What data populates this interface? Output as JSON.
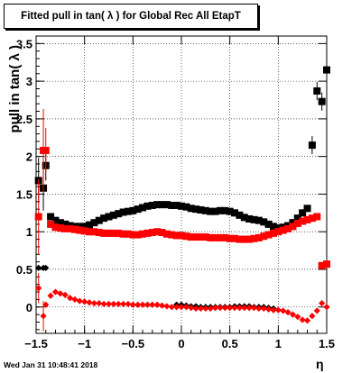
{
  "chart_data": {
    "type": "scatter",
    "title": "Fitted pull in tan( λ ) for Global Rec All EtapT",
    "xlabel": "η",
    "ylabel": "pull in tan( λ )",
    "xlim": [
      -1.5,
      1.5
    ],
    "ylim": [
      -0.35,
      3.6
    ],
    "grid": true,
    "x_ticks": [
      "−1.5",
      "−1",
      "−0.5",
      "0",
      "0.5",
      "1",
      "1.5"
    ],
    "x_tick_values": [
      -1.5,
      -1,
      -0.5,
      0,
      0.5,
      1,
      1.5
    ],
    "y_ticks": [
      "0",
      "0.5",
      "1",
      "1.5",
      "2",
      "2.5",
      "3",
      "3.5"
    ],
    "y_tick_values": [
      0,
      0.5,
      1,
      1.5,
      2,
      2.5,
      3,
      3.5
    ],
    "series": [
      {
        "marker": "square",
        "color": "#000000",
        "points": [
          [
            -1.475,
            1.68
          ],
          [
            -1.425,
            1.58
          ],
          [
            -1.4,
            1.88
          ],
          [
            -1.35,
            1.2
          ],
          [
            -1.3,
            1.15
          ],
          [
            -1.25,
            1.12
          ],
          [
            -1.2,
            1.1
          ],
          [
            -1.15,
            1.08
          ],
          [
            -1.1,
            1.07
          ],
          [
            -1.05,
            1.07
          ],
          [
            -1.0,
            1.07
          ],
          [
            -0.95,
            1.09
          ],
          [
            -0.9,
            1.12
          ],
          [
            -0.85,
            1.15
          ],
          [
            -0.8,
            1.18
          ],
          [
            -0.75,
            1.2
          ],
          [
            -0.7,
            1.22
          ],
          [
            -0.65,
            1.24
          ],
          [
            -0.6,
            1.26
          ],
          [
            -0.55,
            1.27
          ],
          [
            -0.5,
            1.28
          ],
          [
            -0.45,
            1.3
          ],
          [
            -0.4,
            1.32
          ],
          [
            -0.35,
            1.34
          ],
          [
            -0.3,
            1.35
          ],
          [
            -0.25,
            1.36
          ],
          [
            -0.2,
            1.36
          ],
          [
            -0.15,
            1.36
          ],
          [
            -0.1,
            1.35
          ],
          [
            -0.05,
            1.35
          ],
          [
            0.0,
            1.34
          ],
          [
            0.05,
            1.33
          ],
          [
            0.1,
            1.31
          ],
          [
            0.15,
            1.3
          ],
          [
            0.2,
            1.29
          ],
          [
            0.25,
            1.28
          ],
          [
            0.3,
            1.27
          ],
          [
            0.35,
            1.27
          ],
          [
            0.4,
            1.28
          ],
          [
            0.45,
            1.28
          ],
          [
            0.5,
            1.27
          ],
          [
            0.55,
            1.25
          ],
          [
            0.6,
            1.22
          ],
          [
            0.65,
            1.19
          ],
          [
            0.7,
            1.17
          ],
          [
            0.75,
            1.16
          ],
          [
            0.8,
            1.15
          ],
          [
            0.85,
            1.13
          ],
          [
            0.9,
            1.1
          ],
          [
            0.95,
            1.07
          ],
          [
            1.0,
            1.05
          ],
          [
            1.05,
            1.06
          ],
          [
            1.1,
            1.08
          ],
          [
            1.15,
            1.12
          ],
          [
            1.2,
            1.18
          ],
          [
            1.25,
            1.25
          ],
          [
            1.3,
            1.31
          ],
          [
            1.35,
            2.15
          ],
          [
            1.4,
            2.87
          ],
          [
            1.45,
            2.73
          ],
          [
            1.5,
            3.15
          ]
        ],
        "errors": [
          [
            -1.475,
            0.3
          ],
          [
            -1.425,
            0.3
          ],
          [
            -1.4,
            0.2
          ],
          [
            1.35,
            0.12
          ],
          [
            1.4,
            0.12
          ],
          [
            1.45,
            0.12
          ],
          [
            1.5,
            0.15
          ]
        ]
      },
      {
        "marker": "square",
        "color": "#ff0000",
        "points": [
          [
            -1.475,
            1.2
          ],
          [
            -1.425,
            2.08
          ],
          [
            -1.4,
            2.08
          ],
          [
            -1.35,
            1.1
          ],
          [
            -1.3,
            1.06
          ],
          [
            -1.25,
            1.05
          ],
          [
            -1.2,
            1.04
          ],
          [
            -1.15,
            1.04
          ],
          [
            -1.1,
            1.03
          ],
          [
            -1.05,
            1.02
          ],
          [
            -1.0,
            1.01
          ],
          [
            -0.95,
            1.0
          ],
          [
            -0.9,
            1.0
          ],
          [
            -0.85,
            0.99
          ],
          [
            -0.8,
            0.98
          ],
          [
            -0.75,
            0.98
          ],
          [
            -0.7,
            0.98
          ],
          [
            -0.65,
            0.98
          ],
          [
            -0.6,
            0.97
          ],
          [
            -0.55,
            0.97
          ],
          [
            -0.5,
            0.96
          ],
          [
            -0.45,
            0.96
          ],
          [
            -0.4,
            0.97
          ],
          [
            -0.35,
            0.98
          ],
          [
            -0.3,
            0.99
          ],
          [
            -0.25,
            1.0
          ],
          [
            -0.2,
            0.99
          ],
          [
            -0.15,
            0.97
          ],
          [
            -0.1,
            0.96
          ],
          [
            -0.05,
            0.95
          ],
          [
            0.0,
            0.95
          ],
          [
            0.05,
            0.94
          ],
          [
            0.1,
            0.93
          ],
          [
            0.15,
            0.93
          ],
          [
            0.2,
            0.93
          ],
          [
            0.25,
            0.93
          ],
          [
            0.3,
            0.92
          ],
          [
            0.35,
            0.92
          ],
          [
            0.4,
            0.92
          ],
          [
            0.45,
            0.92
          ],
          [
            0.5,
            0.91
          ],
          [
            0.55,
            0.91
          ],
          [
            0.6,
            0.9
          ],
          [
            0.65,
            0.9
          ],
          [
            0.7,
            0.9
          ],
          [
            0.75,
            0.91
          ],
          [
            0.8,
            0.92
          ],
          [
            0.85,
            0.94
          ],
          [
            0.9,
            0.96
          ],
          [
            0.95,
            0.98
          ],
          [
            1.0,
            1.0
          ],
          [
            1.05,
            1.02
          ],
          [
            1.1,
            1.04
          ],
          [
            1.15,
            1.07
          ],
          [
            1.2,
            1.11
          ],
          [
            1.25,
            1.14
          ],
          [
            1.3,
            1.16
          ],
          [
            1.35,
            1.18
          ],
          [
            1.4,
            1.2
          ],
          [
            1.45,
            0.55
          ],
          [
            1.5,
            0.57
          ]
        ],
        "errors": [
          [
            -1.475,
            0.5
          ],
          [
            -1.425,
            0.55
          ],
          [
            -1.4,
            0.3
          ]
        ]
      },
      {
        "marker": "diamond",
        "color": "#000000",
        "points": [
          [
            -1.475,
            0.52
          ],
          [
            -1.425,
            0.52
          ],
          [
            -1.4,
            0.52
          ],
          [
            -0.05,
            0.03
          ],
          [
            0.0,
            0.03
          ],
          [
            0.05,
            0.02
          ],
          [
            0.1,
            0.01
          ],
          [
            0.15,
            0.01
          ],
          [
            0.2,
            0.0
          ],
          [
            0.25,
            0.0
          ],
          [
            0.3,
            0.0
          ],
          [
            0.35,
            0.0
          ],
          [
            0.4,
            0.0
          ],
          [
            0.45,
            0.0
          ],
          [
            0.5,
            0.0
          ],
          [
            0.55,
            0.01
          ],
          [
            0.6,
            0.01
          ],
          [
            0.65,
            0.01
          ],
          [
            0.7,
            0.01
          ],
          [
            0.75,
            0.0
          ],
          [
            0.8,
            0.0
          ],
          [
            0.85,
            0.0
          ],
          [
            0.9,
            -0.01
          ],
          [
            0.95,
            -0.02
          ]
        ],
        "errors": []
      },
      {
        "marker": "diamond",
        "color": "#ff0000",
        "points": [
          [
            -1.475,
            0.25
          ],
          [
            -1.425,
            -0.12
          ],
          [
            -1.4,
            0.03
          ],
          [
            -1.35,
            0.15
          ],
          [
            -1.3,
            0.2
          ],
          [
            -1.25,
            0.18
          ],
          [
            -1.2,
            0.16
          ],
          [
            -1.15,
            0.12
          ],
          [
            -1.1,
            0.1
          ],
          [
            -1.05,
            0.08
          ],
          [
            -1.0,
            0.07
          ],
          [
            -0.95,
            0.06
          ],
          [
            -0.9,
            0.05
          ],
          [
            -0.85,
            0.05
          ],
          [
            -0.8,
            0.04
          ],
          [
            -0.75,
            0.04
          ],
          [
            -0.7,
            0.04
          ],
          [
            -0.65,
            0.04
          ],
          [
            -0.6,
            0.04
          ],
          [
            -0.55,
            0.04
          ],
          [
            -0.5,
            0.03
          ],
          [
            -0.45,
            0.03
          ],
          [
            -0.4,
            0.03
          ],
          [
            -0.35,
            0.03
          ],
          [
            -0.3,
            0.03
          ],
          [
            -0.25,
            0.03
          ],
          [
            -0.2,
            0.02
          ],
          [
            -0.15,
            0.01
          ],
          [
            -0.1,
            0.0
          ],
          [
            -0.05,
            0.0
          ],
          [
            0.0,
            0.0
          ],
          [
            0.05,
            0.0
          ],
          [
            0.1,
            -0.01
          ],
          [
            0.15,
            -0.02
          ],
          [
            0.2,
            -0.02
          ],
          [
            0.25,
            -0.02
          ],
          [
            0.3,
            -0.02
          ],
          [
            0.35,
            -0.01
          ],
          [
            0.4,
            -0.01
          ],
          [
            0.45,
            -0.01
          ],
          [
            0.5,
            -0.01
          ],
          [
            0.55,
            -0.01
          ],
          [
            0.6,
            -0.01
          ],
          [
            0.65,
            -0.01
          ],
          [
            0.7,
            -0.01
          ],
          [
            0.75,
            -0.01
          ],
          [
            0.8,
            -0.02
          ],
          [
            0.85,
            -0.02
          ],
          [
            0.9,
            -0.03
          ],
          [
            0.95,
            -0.04
          ],
          [
            1.0,
            -0.04
          ],
          [
            1.05,
            -0.05
          ],
          [
            1.1,
            -0.07
          ],
          [
            1.15,
            -0.1
          ],
          [
            1.2,
            -0.13
          ],
          [
            1.25,
            -0.17
          ],
          [
            1.3,
            -0.18
          ],
          [
            1.35,
            -0.12
          ],
          [
            1.4,
            -0.05
          ],
          [
            1.45,
            0.05
          ],
          [
            1.5,
            0.0
          ]
        ],
        "errors": [
          [
            -1.475,
            0.2
          ],
          [
            -1.425,
            0.2
          ]
        ]
      }
    ]
  },
  "footer": {
    "timestamp": "Wed Jan 31 10:48:41 2018"
  }
}
